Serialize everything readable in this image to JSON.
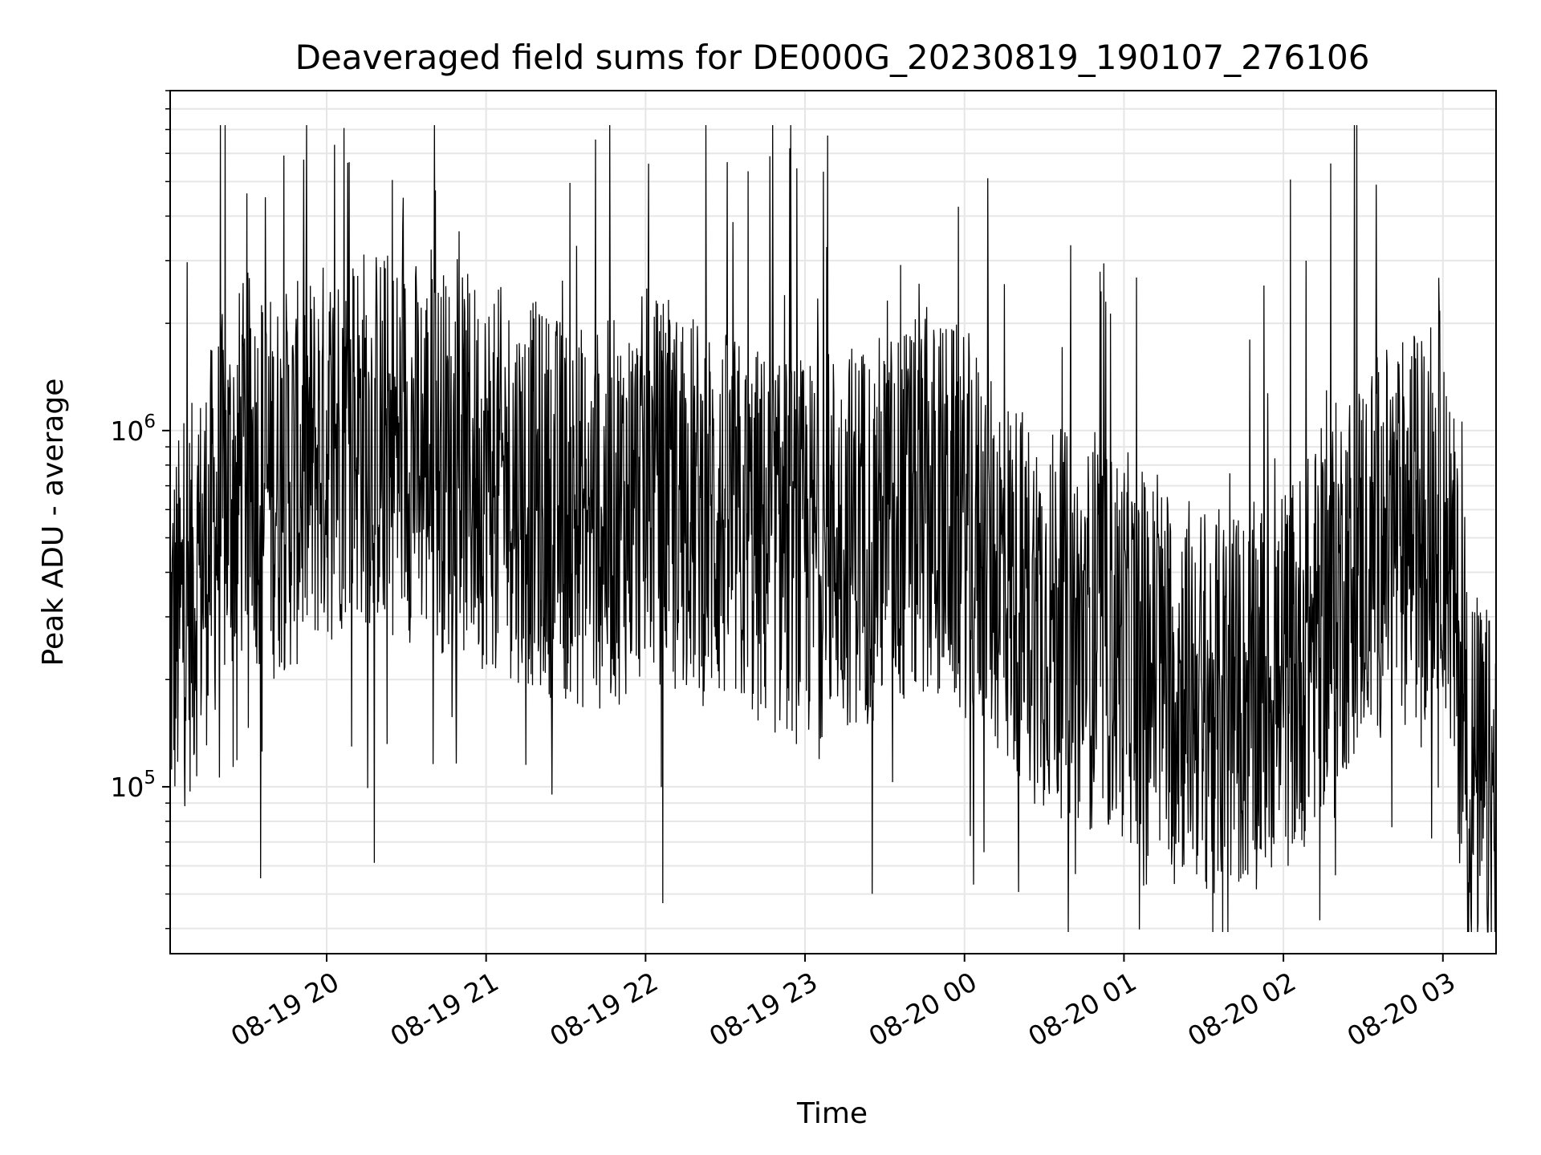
{
  "chart_data": {
    "type": "line",
    "title": "Deaveraged field sums for DE000G_20230819_190107_276106",
    "xlabel": "Time",
    "ylabel": "Peak ADU - average",
    "x_range": [
      "2023-08-19 19:01:07",
      "2023-08-20 03:20:00"
    ],
    "ylim": [
      34000,
      9000000
    ],
    "y_scale": "log",
    "grid": true,
    "line_color": "#000000",
    "x_ticks": [
      "08-19 20",
      "08-19 21",
      "08-19 22",
      "08-19 23",
      "08-20 00",
      "08-20 01",
      "08-20 02",
      "08-20 03"
    ],
    "y_ticks": [
      {
        "value": 1000000,
        "base": "10",
        "exp": "6"
      },
      {
        "value": 100000,
        "base": "10",
        "exp": "5"
      }
    ],
    "series": [
      {
        "note_envelope": "Dense noisy time series; values sampled as median trend with spikes",
        "x": [
          "2023-08-19 19:01",
          "2023-08-19 19:10",
          "2023-08-19 19:20",
          "2023-08-19 19:30",
          "2023-08-19 19:40",
          "2023-08-19 19:50",
          "2023-08-19 20:00",
          "2023-08-19 20:10",
          "2023-08-19 20:20",
          "2023-08-19 20:30",
          "2023-08-19 20:40",
          "2023-08-19 20:50",
          "2023-08-19 21:00",
          "2023-08-19 21:10",
          "2023-08-19 21:20",
          "2023-08-19 21:30",
          "2023-08-19 21:40",
          "2023-08-19 21:50",
          "2023-08-19 22:00",
          "2023-08-19 22:10",
          "2023-08-19 22:20",
          "2023-08-19 22:30",
          "2023-08-19 22:40",
          "2023-08-19 22:50",
          "2023-08-19 23:00",
          "2023-08-19 23:10",
          "2023-08-19 23:20",
          "2023-08-19 23:30",
          "2023-08-19 23:40",
          "2023-08-19 23:50",
          "2023-08-20 00:00",
          "2023-08-20 00:10",
          "2023-08-20 00:20",
          "2023-08-20 00:30",
          "2023-08-20 00:40",
          "2023-08-20 00:50",
          "2023-08-20 01:00",
          "2023-08-20 01:10",
          "2023-08-20 01:20",
          "2023-08-20 01:30",
          "2023-08-20 01:40",
          "2023-08-20 01:50",
          "2023-08-20 02:00",
          "2023-08-20 02:10",
          "2023-08-20 02:20",
          "2023-08-20 02:30",
          "2023-08-20 02:40",
          "2023-08-20 02:50",
          "2023-08-20 03:00",
          "2023-08-20 03:10",
          "2023-08-20 03:19"
        ],
        "y": [
          250000,
          350000,
          600000,
          800000,
          700000,
          750000,
          900000,
          1000000,
          950000,
          900000,
          850000,
          800000,
          750000,
          700000,
          650000,
          600000,
          550000,
          600000,
          700000,
          650000,
          600000,
          550000,
          500000,
          480000,
          450000,
          500000,
          520000,
          550000,
          580000,
          600000,
          550000,
          450000,
          350000,
          300000,
          280000,
          260000,
          250000,
          220000,
          200000,
          180000,
          170000,
          180000,
          200000,
          250000,
          350000,
          450000,
          500000,
          550000,
          650000,
          110000,
          85000
        ]
      }
    ]
  }
}
